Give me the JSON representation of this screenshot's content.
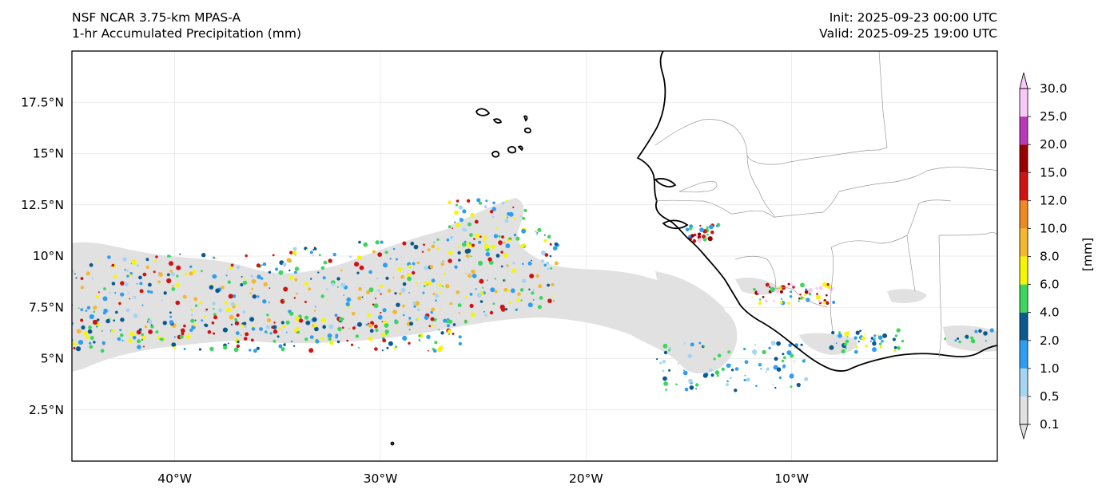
{
  "header": {
    "title_line1": "NSF NCAR 3.75-km MPAS-A",
    "title_line2": "1-hr Accumulated Precipitation (mm)",
    "init": "Init: 2025-09-23 00:00 UTC",
    "valid": "Valid: 2025-09-25 19:00 UTC"
  },
  "map": {
    "lon_range": [
      -45,
      0
    ],
    "lat_range": [
      0,
      20
    ],
    "lon_ticks": [
      {
        "value": -40,
        "label": "40°W"
      },
      {
        "value": -30,
        "label": "30°W"
      },
      {
        "value": -20,
        "label": "20°W"
      },
      {
        "value": -10,
        "label": "10°W"
      }
    ],
    "lat_ticks": [
      {
        "value": 17.5,
        "label": "17.5°N"
      },
      {
        "value": 15,
        "label": "15°N"
      },
      {
        "value": 12.5,
        "label": "12.5°N"
      },
      {
        "value": 10,
        "label": "10°N"
      },
      {
        "value": 7.5,
        "label": "7.5°N"
      },
      {
        "value": 5,
        "label": "5°N"
      },
      {
        "value": 2.5,
        "label": "2.5°N"
      }
    ],
    "gridlines": true
  },
  "colorbar": {
    "units_label": "[mm]",
    "levels": [
      "0.1",
      "0.5",
      "1.0",
      "2.0",
      "4.0",
      "6.0",
      "8.0",
      "10.0",
      "12.0",
      "15.0",
      "20.0",
      "25.0",
      "30.0"
    ],
    "colors": [
      "#e1e1e1",
      "#a6d4f5",
      "#2e9ef2",
      "#0b5a8f",
      "#3dd65c",
      "#f6f600",
      "#f4b830",
      "#ee8a24",
      "#d01212",
      "#990000",
      "#b83ab8",
      "#f8c8f8"
    ]
  }
}
